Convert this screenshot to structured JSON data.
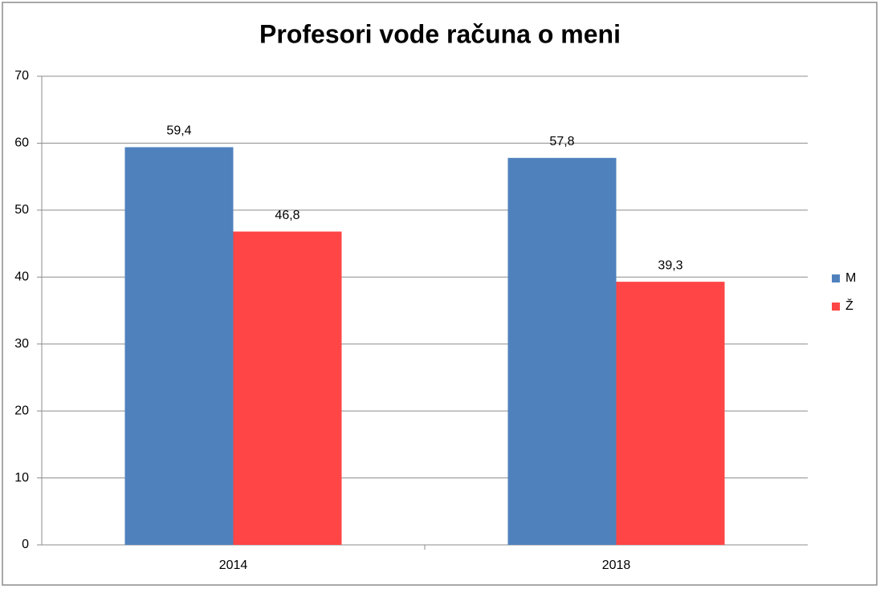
{
  "chart_data": {
    "type": "bar",
    "title": "Profesori vode računa o meni",
    "categories": [
      "2014",
      "2018"
    ],
    "series": [
      {
        "name": "M",
        "color": "#4f81bd",
        "values": [
          59.4,
          57.8
        ],
        "value_labels": [
          "59,4",
          "57,8"
        ]
      },
      {
        "name": "Ž",
        "color": "#ff4545",
        "values": [
          46.8,
          39.3
        ],
        "value_labels": [
          "46,8",
          "39,3"
        ]
      }
    ],
    "ylim": [
      0,
      70
    ],
    "yticks": [
      0,
      10,
      20,
      30,
      40,
      50,
      60,
      70
    ],
    "grid": true,
    "legend": "right"
  }
}
